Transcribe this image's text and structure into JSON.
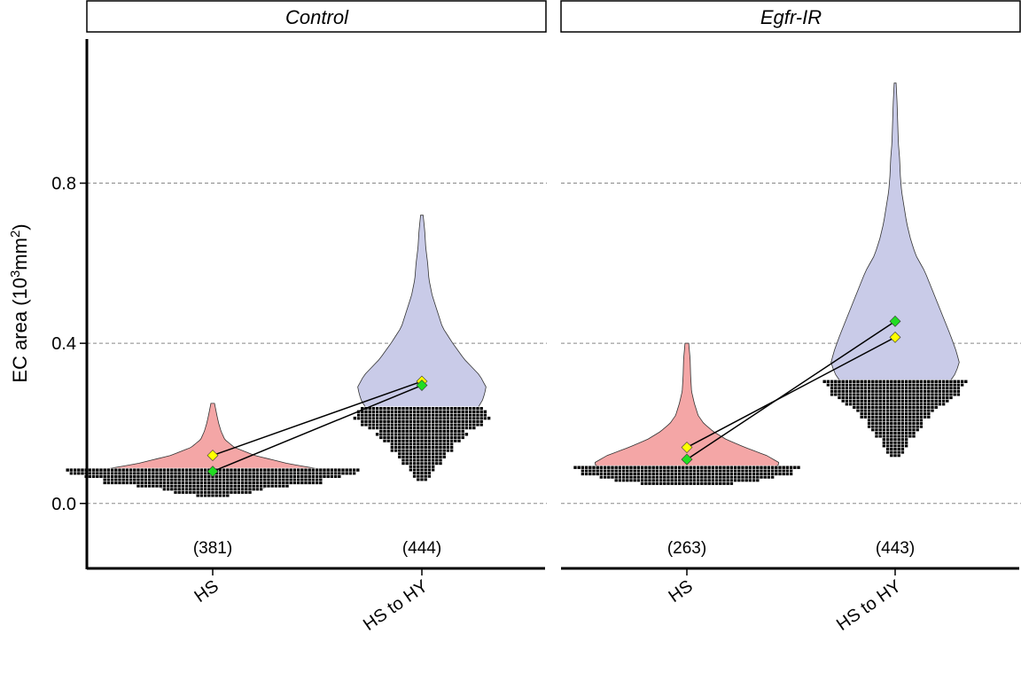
{
  "chart_data": {
    "type": "violin",
    "ylabel": {
      "base": "EC area (10",
      "sup1": "3",
      "mid": "mm",
      "sup2": "2",
      "end": ")"
    },
    "ylim": [
      -0.16,
      1.16
    ],
    "yticks": [
      0.0,
      0.4,
      0.8
    ],
    "y_tick_labels": [
      "0.0",
      "0.4",
      "0.8"
    ],
    "grid": {
      "major_y": true,
      "style": "dashed"
    },
    "categories": [
      "HS",
      "HS to HY"
    ],
    "category_fill": {
      "HS": "#f4a6a6",
      "HS to HY": "#c9cbe8"
    },
    "marker_colors": {
      "yellow": "#ffff00",
      "green": "#22dd22"
    },
    "panels": [
      {
        "strip": "Control",
        "groups": [
          {
            "category": "HS",
            "n_label": "(381)",
            "n": 381,
            "min": 0.02,
            "max": 0.25,
            "mode": 0.08,
            "yellow": 0.12,
            "green": 0.08,
            "profile": [
              [
                0.02,
                0.08
              ],
              [
                0.04,
                0.45
              ],
              [
                0.06,
                0.8
              ],
              [
                0.08,
                1.0
              ],
              [
                0.1,
                0.62
              ],
              [
                0.12,
                0.35
              ],
              [
                0.14,
                0.18
              ],
              [
                0.16,
                0.1
              ],
              [
                0.18,
                0.07
              ],
              [
                0.2,
                0.05
              ],
              [
                0.22,
                0.035
              ],
              [
                0.25,
                0.015
              ]
            ]
          },
          {
            "category": "HS to HY",
            "n_label": "(444)",
            "n": 444,
            "min": 0.06,
            "max": 0.72,
            "mode": 0.29,
            "yellow": 0.305,
            "green": 0.295,
            "profile": [
              [
                0.06,
                0.04
              ],
              [
                0.1,
                0.2
              ],
              [
                0.14,
                0.36
              ],
              [
                0.18,
                0.56
              ],
              [
                0.22,
                0.8
              ],
              [
                0.26,
                0.95
              ],
              [
                0.29,
                1.0
              ],
              [
                0.32,
                0.9
              ],
              [
                0.36,
                0.66
              ],
              [
                0.4,
                0.48
              ],
              [
                0.44,
                0.32
              ],
              [
                0.48,
                0.24
              ],
              [
                0.52,
                0.16
              ],
              [
                0.56,
                0.11
              ],
              [
                0.6,
                0.09
              ],
              [
                0.64,
                0.06
              ],
              [
                0.68,
                0.045
              ],
              [
                0.72,
                0.02
              ]
            ]
          }
        ],
        "connections": [
          {
            "from": "HS",
            "to": "HS to HY",
            "series": "yellow"
          },
          {
            "from": "HS",
            "to": "HS to HY",
            "series": "green"
          }
        ]
      },
      {
        "strip": "Egfr-IR",
        "groups": [
          {
            "category": "HS",
            "n_label": "(263)",
            "n": 263,
            "min": 0.05,
            "max": 0.4,
            "mode": 0.1,
            "yellow": 0.14,
            "green": 0.11,
            "profile": [
              [
                0.05,
                0.4
              ],
              [
                0.07,
                0.8
              ],
              [
                0.1,
                1.0
              ],
              [
                0.12,
                0.85
              ],
              [
                0.14,
                0.62
              ],
              [
                0.16,
                0.42
              ],
              [
                0.18,
                0.28
              ],
              [
                0.2,
                0.18
              ],
              [
                0.22,
                0.12
              ],
              [
                0.25,
                0.08
              ],
              [
                0.28,
                0.05
              ],
              [
                0.32,
                0.04
              ],
              [
                0.36,
                0.035
              ],
              [
                0.4,
                0.02
              ]
            ]
          },
          {
            "category": "HS to HY",
            "n_label": "(443)",
            "n": 443,
            "min": 0.12,
            "max": 1.05,
            "mode": 0.34,
            "yellow": 0.415,
            "green": 0.455,
            "profile": [
              [
                0.12,
                0.05
              ],
              [
                0.16,
                0.16
              ],
              [
                0.2,
                0.32
              ],
              [
                0.24,
                0.5
              ],
              [
                0.28,
                0.74
              ],
              [
                0.32,
                0.92
              ],
              [
                0.35,
                1.0
              ],
              [
                0.38,
                0.95
              ],
              [
                0.42,
                0.86
              ],
              [
                0.46,
                0.76
              ],
              [
                0.5,
                0.66
              ],
              [
                0.54,
                0.56
              ],
              [
                0.58,
                0.46
              ],
              [
                0.62,
                0.32
              ],
              [
                0.66,
                0.24
              ],
              [
                0.7,
                0.18
              ],
              [
                0.74,
                0.14
              ],
              [
                0.78,
                0.1
              ],
              [
                0.82,
                0.08
              ],
              [
                0.86,
                0.07
              ],
              [
                0.9,
                0.05
              ],
              [
                0.95,
                0.04
              ],
              [
                1.0,
                0.03
              ],
              [
                1.05,
                0.015
              ]
            ]
          }
        ],
        "connections": [
          {
            "from": "HS",
            "to": "HS to HY",
            "series": "yellow"
          },
          {
            "from": "HS",
            "to": "HS to HY",
            "series": "green"
          }
        ]
      }
    ]
  }
}
